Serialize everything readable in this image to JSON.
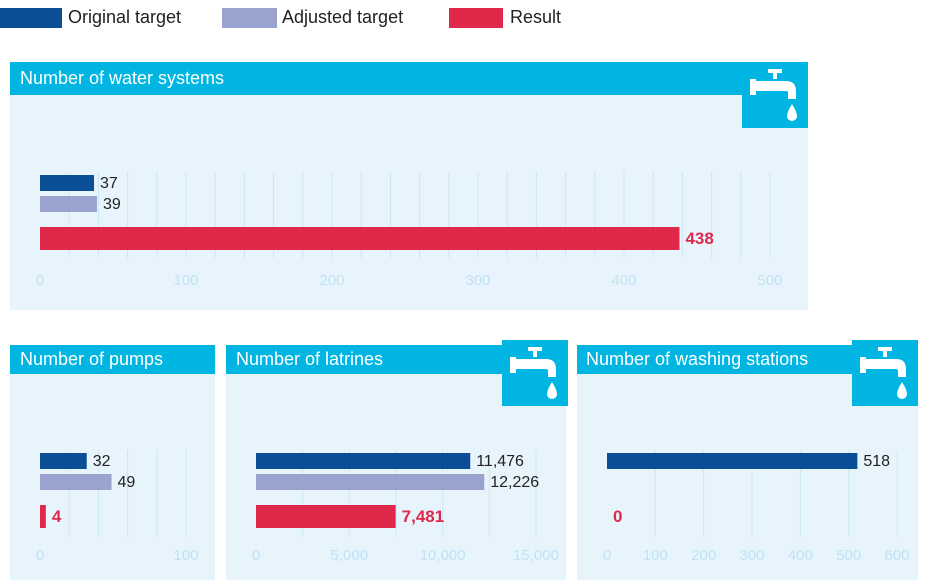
{
  "legend": {
    "labels": [
      "Original target",
      "Adjusted target",
      "Result"
    ],
    "colors": [
      "#0a4f96",
      "#9aa3d0",
      "#e0294a"
    ]
  },
  "chart_data": [
    {
      "type": "bar",
      "title": "Number of water systems",
      "values": [
        37,
        39,
        438
      ],
      "xlim": [
        0,
        500
      ],
      "xticks": [
        0,
        100,
        200,
        300,
        400,
        500
      ],
      "xgrid": [
        20,
        40,
        60,
        80,
        100,
        120,
        140,
        160,
        180,
        200,
        220,
        240,
        260,
        280,
        300,
        320,
        340,
        360,
        380,
        400,
        420,
        440,
        460,
        480,
        500
      ]
    },
    {
      "type": "bar",
      "title": "Number of pumps",
      "values": [
        32,
        49,
        4
      ],
      "xlim": [
        0,
        100
      ],
      "xticks": [
        0,
        100
      ],
      "xgrid": [
        20,
        40,
        60,
        80,
        100
      ]
    },
    {
      "type": "bar",
      "title": "Number of latrines",
      "values": [
        11476,
        12226,
        7481
      ],
      "value_labels": [
        "11,476",
        "12,226",
        "7,481"
      ],
      "xlim": [
        0,
        15000
      ],
      "xticks": [
        0,
        {
          "value": 5000,
          "label": "5,000"
        },
        {
          "value": 10000,
          "label": "10,000"
        },
        {
          "value": 15000,
          "label": "15,000"
        }
      ],
      "xgrid": [
        2500,
        5000,
        7500,
        10000,
        12500,
        15000
      ]
    },
    {
      "type": "bar",
      "title": "Number of washing stations",
      "values": [
        518,
        null,
        0
      ],
      "xlim": [
        0,
        600
      ],
      "xticks": [
        0,
        100,
        200,
        300,
        400,
        500,
        600
      ],
      "xgrid": [
        100,
        200,
        300,
        400,
        500,
        600
      ]
    }
  ]
}
